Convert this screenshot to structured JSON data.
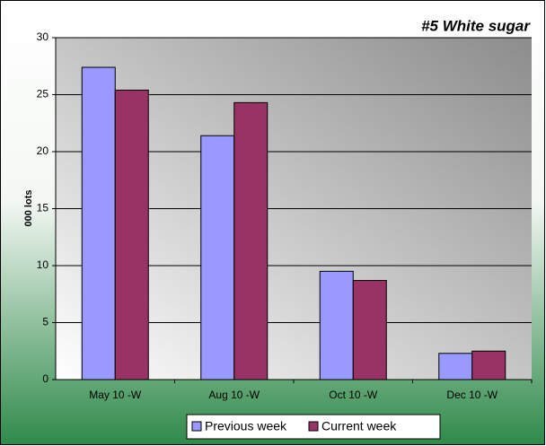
{
  "chart_data": {
    "type": "bar",
    "title": "#5 White sugar",
    "y_label": "000 lots",
    "categories": [
      "May 10 -W",
      "Aug 10 -W",
      "Oct 10 -W",
      "Dec 10 -W"
    ],
    "series": [
      {
        "name": "Previous week",
        "color": "#9999ff",
        "values": [
          27.4,
          21.4,
          9.5,
          2.3
        ]
      },
      {
        "name": "Current week",
        "color": "#993366",
        "values": [
          25.4,
          24.3,
          8.7,
          2.5
        ]
      }
    ],
    "ylim": [
      0,
      30
    ],
    "yticks": [
      0,
      5,
      10,
      15,
      20,
      25,
      30
    ],
    "grid": true
  }
}
